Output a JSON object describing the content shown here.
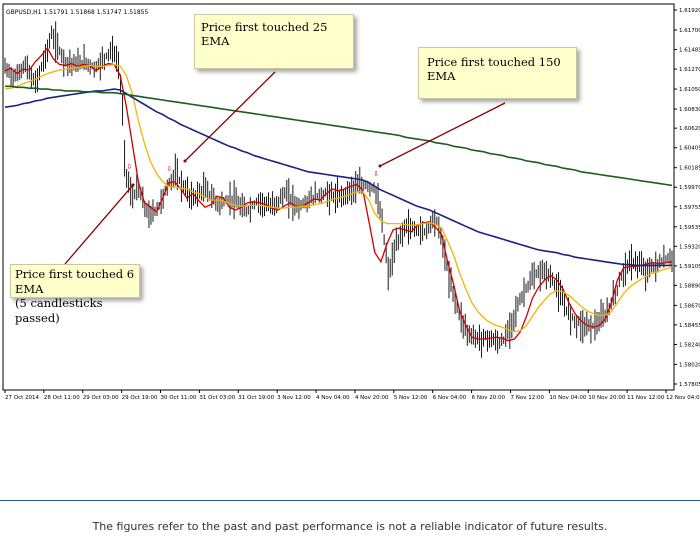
{
  "chart_data": {
    "type": "candlestick",
    "header": "GBPUSD,H1  1.51791 1.51868 1.51747 1.51855",
    "y_ticks": [
      "1.61920",
      "1.61700",
      "1.61485",
      "1.61270",
      "1.61050",
      "1.60830",
      "1.60620",
      "1.60405",
      "1.60185",
      "1.59970",
      "1.59755",
      "1.59535",
      "1.59320",
      "1.59105",
      "1.58890",
      "1.58670",
      "1.58455",
      "1.58240",
      "1.58020",
      "1.57805"
    ],
    "ylim": [
      1.57805,
      1.6192
    ],
    "x_ticks": [
      "27 Oct 2014",
      "28 Oct 11:00",
      "29 Oct 03:00",
      "29 Oct 19:00",
      "30 Oct 11:00",
      "31 Oct 03:00",
      "31 Oct 19:00",
      "3 Nov 12:00",
      "4 Nov 04:00",
      "4 Nov 20:00",
      "5 Nov 12:00",
      "6 Nov 04:00",
      "6 Nov 20:00",
      "7 Nov 12:00",
      "10 Nov 04:00",
      "10 Nov 20:00",
      "11 Nov 12:00",
      "12 Nov 04:00"
    ],
    "series": [
      {
        "color": "#cc0000",
        "values": [
          1.6125,
          1.6128,
          1.6122,
          1.6127,
          1.6126,
          1.6135,
          1.6142,
          1.615,
          1.6138,
          1.6132,
          1.6131,
          1.6133,
          1.613,
          1.6132,
          1.6131,
          1.6125,
          1.613,
          1.6133,
          1.6132,
          1.612,
          1.6086,
          1.6045,
          1.6003,
          1.598,
          1.5975,
          1.597,
          1.5985,
          1.6002,
          1.6003,
          1.5995,
          1.5985,
          1.599,
          1.5982,
          1.5975,
          1.5978,
          1.5987,
          1.5985,
          1.5975,
          1.5972,
          1.5975,
          1.598,
          1.5981,
          1.598,
          1.5978,
          1.5974,
          1.5972,
          1.5976,
          1.598,
          1.5976,
          1.5976,
          1.598,
          1.5984,
          1.5983,
          1.599,
          1.5995,
          1.5993,
          1.5995,
          1.5998,
          1.6,
          1.5994,
          1.596,
          1.5925,
          1.5915,
          1.5935,
          1.595,
          1.5952,
          1.595,
          1.5948,
          1.5955,
          1.5958,
          1.5959,
          1.5953,
          1.5945,
          1.5915,
          1.589,
          1.586,
          1.5845,
          1.5832,
          1.583,
          1.583,
          1.5831,
          1.5832,
          1.5831,
          1.5828,
          1.583,
          1.5838,
          1.5855,
          1.5875,
          1.5887,
          1.5895,
          1.59,
          1.5895,
          1.5885,
          1.587,
          1.5858,
          1.585,
          1.5845,
          1.5843,
          1.5845,
          1.5852,
          1.587,
          1.5895,
          1.5908,
          1.591,
          1.591,
          1.5911,
          1.5913,
          1.5914,
          1.5913,
          1.5914,
          1.5915
        ]
      },
      {
        "color": "#f2b600",
        "values": [
          1.6105,
          1.6106,
          1.6108,
          1.6111,
          1.6113,
          1.6116,
          1.6119,
          1.6122,
          1.6124,
          1.6126,
          1.6127,
          1.6128,
          1.6129,
          1.613,
          1.6131,
          1.613,
          1.613,
          1.6131,
          1.6132,
          1.613,
          1.612,
          1.61,
          1.607,
          1.6045,
          1.6025,
          1.6012,
          1.6003,
          1.5998,
          1.5997,
          1.5996,
          1.5995,
          1.5992,
          1.599,
          1.5986,
          1.5983,
          1.5983,
          1.5982,
          1.5979,
          1.5977,
          1.5976,
          1.5977,
          1.5977,
          1.5977,
          1.5976,
          1.5975,
          1.5974,
          1.5974,
          1.5975,
          1.5975,
          1.5976,
          1.5976,
          1.5978,
          1.5979,
          1.5981,
          1.5984,
          1.5985,
          1.5987,
          1.5989,
          1.5992,
          1.5992,
          1.5983,
          1.5968,
          1.596,
          1.5957,
          1.5957,
          1.5957,
          1.5956,
          1.5955,
          1.5956,
          1.5957,
          1.5958,
          1.5956,
          1.5952,
          1.5938,
          1.5922,
          1.5902,
          1.5885,
          1.587,
          1.586,
          1.5853,
          1.5848,
          1.5845,
          1.5843,
          1.584,
          1.5838,
          1.5839,
          1.5845,
          1.5855,
          1.5865,
          1.5873,
          1.588,
          1.5883,
          1.5882,
          1.5878,
          1.5872,
          1.5866,
          1.5861,
          1.5858,
          1.5856,
          1.5856,
          1.586,
          1.587,
          1.588,
          1.5887,
          1.5892,
          1.5896,
          1.59,
          1.5903,
          1.5905,
          1.5907,
          1.5909
        ]
      },
      {
        "color": "#1a237e",
        "values": [
          1.6085,
          1.6086,
          1.6087,
          1.6089,
          1.609,
          1.6092,
          1.6093,
          1.6095,
          1.6096,
          1.6097,
          1.6098,
          1.6099,
          1.61,
          1.6101,
          1.6102,
          1.6103,
          1.6103,
          1.6104,
          1.6105,
          1.6104,
          1.61,
          1.6096,
          1.6092,
          1.6088,
          1.6084,
          1.608,
          1.6077,
          1.6073,
          1.607,
          1.6066,
          1.6063,
          1.606,
          1.6057,
          1.6054,
          1.6051,
          1.6048,
          1.6045,
          1.6042,
          1.604,
          1.6037,
          1.6035,
          1.6032,
          1.603,
          1.6028,
          1.6026,
          1.6024,
          1.6022,
          1.602,
          1.6018,
          1.6016,
          1.6014,
          1.6013,
          1.6012,
          1.6011,
          1.601,
          1.6009,
          1.6008,
          1.6007,
          1.6006,
          1.6005,
          1.6002,
          1.5998,
          1.5994,
          1.5991,
          1.5988,
          1.5985,
          1.5982,
          1.5979,
          1.5976,
          1.5974,
          1.5972,
          1.5969,
          1.5966,
          1.5963,
          1.596,
          1.5957,
          1.5954,
          1.5951,
          1.5948,
          1.5946,
          1.5944,
          1.5942,
          1.594,
          1.5938,
          1.5936,
          1.5934,
          1.5932,
          1.593,
          1.5928,
          1.5927,
          1.5926,
          1.5925,
          1.5923,
          1.5922,
          1.592,
          1.5919,
          1.5918,
          1.5917,
          1.5916,
          1.5915,
          1.5914,
          1.5913,
          1.5912,
          1.5912,
          1.5911,
          1.5911,
          1.5911,
          1.5911,
          1.5911,
          1.5911,
          1.5911
        ]
      },
      {
        "color": "#1b5e20",
        "values": [
          1.6108,
          1.6108,
          1.6107,
          1.6107,
          1.6106,
          1.6106,
          1.6105,
          1.6105,
          1.6104,
          1.6104,
          1.6103,
          1.6103,
          1.6103,
          1.6102,
          1.6102,
          1.6102,
          1.6101,
          1.6101,
          1.6101,
          1.61,
          1.6099,
          1.6098,
          1.6097,
          1.6096,
          1.6095,
          1.6094,
          1.6093,
          1.6092,
          1.6091,
          1.609,
          1.6089,
          1.6088,
          1.6087,
          1.6086,
          1.6085,
          1.6084,
          1.6083,
          1.6082,
          1.6081,
          1.608,
          1.6079,
          1.6078,
          1.6077,
          1.6076,
          1.6075,
          1.6074,
          1.6073,
          1.6072,
          1.6071,
          1.607,
          1.6069,
          1.6068,
          1.6067,
          1.6066,
          1.6065,
          1.6064,
          1.6063,
          1.6062,
          1.6061,
          1.606,
          1.6059,
          1.6058,
          1.6057,
          1.6056,
          1.6055,
          1.6054,
          1.6052,
          1.6051,
          1.605,
          1.6049,
          1.6048,
          1.6046,
          1.6045,
          1.6044,
          1.6042,
          1.6041,
          1.604,
          1.6038,
          1.6037,
          1.6036,
          1.6034,
          1.6033,
          1.6032,
          1.603,
          1.6029,
          1.6028,
          1.6026,
          1.6025,
          1.6024,
          1.6022,
          1.6021,
          1.602,
          1.6018,
          1.6017,
          1.6016,
          1.6014,
          1.6013,
          1.6012,
          1.6011,
          1.601,
          1.6009,
          1.6008,
          1.6007,
          1.6006,
          1.6005,
          1.6004,
          1.6003,
          1.6002,
          1.6001,
          1.6,
          1.5999
        ]
      }
    ],
    "price": [
      {
        "x": 0.0,
        "y": 1.6128
      },
      {
        "x": 0.015,
        "y": 1.6118
      },
      {
        "x": 0.03,
        "y": 1.6132
      },
      {
        "x": 0.045,
        "y": 1.611
      },
      {
        "x": 0.06,
        "y": 1.614
      },
      {
        "x": 0.07,
        "y": 1.6165
      },
      {
        "x": 0.08,
        "y": 1.615
      },
      {
        "x": 0.09,
        "y": 1.6136
      },
      {
        "x": 0.105,
        "y": 1.6132
      },
      {
        "x": 0.12,
        "y": 1.6135
      },
      {
        "x": 0.135,
        "y": 1.6128
      },
      {
        "x": 0.15,
        "y": 1.614
      },
      {
        "x": 0.16,
        "y": 1.615
      },
      {
        "x": 0.17,
        "y": 1.6132
      },
      {
        "x": 0.175,
        "y": 1.61
      },
      {
        "x": 0.18,
        "y": 1.602
      },
      {
        "x": 0.19,
        "y": 1.5985
      },
      {
        "x": 0.2,
        "y": 1.5995
      },
      {
        "x": 0.215,
        "y": 1.5965
      },
      {
        "x": 0.23,
        "y": 1.5975
      },
      {
        "x": 0.245,
        "y": 1.6
      },
      {
        "x": 0.255,
        "y": 1.6012
      },
      {
        "x": 0.265,
        "y": 1.6
      },
      {
        "x": 0.28,
        "y": 1.5985
      },
      {
        "x": 0.3,
        "y": 1.5995
      },
      {
        "x": 0.32,
        "y": 1.5978
      },
      {
        "x": 0.34,
        "y": 1.5985
      },
      {
        "x": 0.36,
        "y": 1.597
      },
      {
        "x": 0.38,
        "y": 1.5982
      },
      {
        "x": 0.4,
        "y": 1.5975
      },
      {
        "x": 0.42,
        "y": 1.599
      },
      {
        "x": 0.44,
        "y": 1.5975
      },
      {
        "x": 0.46,
        "y": 1.5985
      },
      {
        "x": 0.48,
        "y": 1.599
      },
      {
        "x": 0.5,
        "y": 1.5985
      },
      {
        "x": 0.52,
        "y": 1.5995
      },
      {
        "x": 0.54,
        "y": 1.6
      },
      {
        "x": 0.555,
        "y": 1.5995
      },
      {
        "x": 0.565,
        "y": 1.596
      },
      {
        "x": 0.575,
        "y": 1.59
      },
      {
        "x": 0.585,
        "y": 1.593
      },
      {
        "x": 0.6,
        "y": 1.5955
      },
      {
        "x": 0.615,
        "y": 1.595
      },
      {
        "x": 0.63,
        "y": 1.5948
      },
      {
        "x": 0.645,
        "y": 1.5965
      },
      {
        "x": 0.655,
        "y": 1.594
      },
      {
        "x": 0.665,
        "y": 1.59
      },
      {
        "x": 0.68,
        "y": 1.586
      },
      {
        "x": 0.695,
        "y": 1.5835
      },
      {
        "x": 0.71,
        "y": 1.583
      },
      {
        "x": 0.725,
        "y": 1.5832
      },
      {
        "x": 0.74,
        "y": 1.5825
      },
      {
        "x": 0.75,
        "y": 1.583
      },
      {
        "x": 0.765,
        "y": 1.586
      },
      {
        "x": 0.78,
        "y": 1.5885
      },
      {
        "x": 0.795,
        "y": 1.59
      },
      {
        "x": 0.81,
        "y": 1.5905
      },
      {
        "x": 0.825,
        "y": 1.589
      },
      {
        "x": 0.84,
        "y": 1.5865
      },
      {
        "x": 0.855,
        "y": 1.585
      },
      {
        "x": 0.87,
        "y": 1.5845
      },
      {
        "x": 0.885,
        "y": 1.5845
      },
      {
        "x": 0.9,
        "y": 1.5855
      },
      {
        "x": 0.915,
        "y": 1.588
      },
      {
        "x": 0.93,
        "y": 1.591
      },
      {
        "x": 0.945,
        "y": 1.5915
      },
      {
        "x": 0.96,
        "y": 1.5905
      },
      {
        "x": 0.975,
        "y": 1.591
      },
      {
        "x": 0.99,
        "y": 1.5918
      },
      {
        "x": 1.0,
        "y": 1.592
      }
    ],
    "markers": [
      0.185,
      0.245,
      0.555
    ]
  },
  "annotations": {
    "ema25": "Price first touched 25 EMA",
    "ema150": "Price first touched 150 EMA",
    "ema6_line1": "Price first touched 6 EMA",
    "ema6_line2": "(5 candlesticks passed)"
  },
  "footer": {
    "disclaimer": "The figures refer to the past and past performance is not a reliable indicator of future results."
  }
}
